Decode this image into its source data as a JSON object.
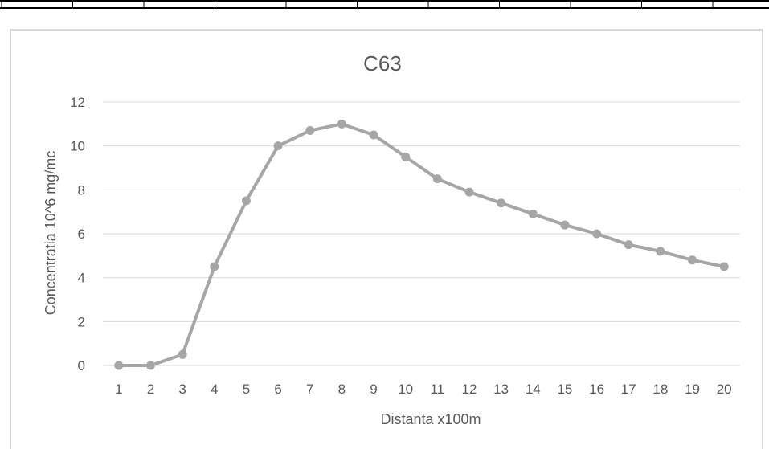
{
  "chart_data": {
    "type": "line",
    "title": "C63",
    "xlabel": "Distanta x100m",
    "ylabel": "Concentratia 10^6 mg/mc",
    "categories": [
      "1",
      "2",
      "3",
      "4",
      "5",
      "6",
      "7",
      "8",
      "9",
      "10",
      "11",
      "12",
      "13",
      "14",
      "15",
      "16",
      "17",
      "18",
      "19",
      "20"
    ],
    "series": [
      {
        "values": [
          0,
          0,
          0.5,
          4.5,
          7.5,
          10,
          10.7,
          11,
          10.5,
          9.5,
          8.5,
          7.9,
          7.4,
          6.9,
          6.4,
          6.0,
          5.5,
          5.2,
          4.8,
          4.5
        ]
      }
    ],
    "ylim": [
      0,
      12
    ],
    "yticks": [
      "0",
      "2",
      "4",
      "6",
      "8",
      "10",
      "12"
    ],
    "grid": true,
    "legend": "none",
    "line_color": "#a6a6a6",
    "grid_color": "#d9d9d9"
  }
}
